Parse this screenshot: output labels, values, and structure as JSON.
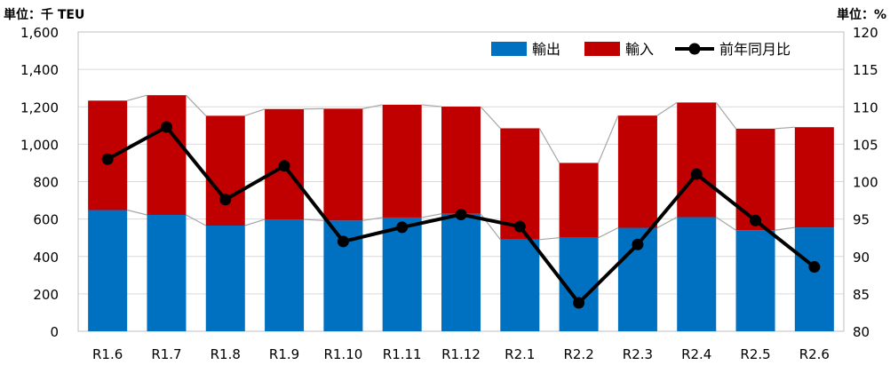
{
  "chart_data": {
    "type": "bar",
    "stacked": true,
    "left_unit_label": "単位：千 TEU",
    "right_unit_label": "単位：%",
    "categories": [
      "R1.6",
      "R1.7",
      "R1.8",
      "R1.9",
      "R1.10",
      "R1.11",
      "R1.12",
      "R2.1",
      "R2.2",
      "R2.3",
      "R2.4",
      "R2.5",
      "R2.6"
    ],
    "y_left": {
      "min": 0,
      "max": 1600,
      "step": 200,
      "tick_labels": [
        "0",
        "200",
        "400",
        "600",
        "800",
        "1,000",
        "1,200",
        "1,400",
        "1,600"
      ]
    },
    "y_right": {
      "min": 80,
      "max": 120,
      "step": 5,
      "tick_labels": [
        "80",
        "85",
        "90",
        "95",
        "100",
        "105",
        "110",
        "115",
        "120"
      ]
    },
    "series": [
      {
        "name": "輸出",
        "type": "bar",
        "axis": "left",
        "color": "#0070C0",
        "values": [
          648,
          622,
          565,
          598,
          592,
          608,
          628,
          490,
          500,
          553,
          610,
          540,
          555
        ]
      },
      {
        "name": "輸入",
        "type": "bar",
        "axis": "left",
        "color": "#C00000",
        "values": [
          585,
          640,
          587,
          590,
          598,
          603,
          573,
          595,
          400,
          600,
          613,
          543,
          536
        ]
      },
      {
        "name": "前年同月比",
        "type": "line",
        "axis": "right",
        "color": "#000000",
        "values": [
          103.0,
          107.3,
          97.6,
          102.1,
          92.0,
          93.9,
          95.6,
          94.0,
          83.8,
          91.6,
          101.0,
          94.8,
          88.6
        ]
      }
    ],
    "legend_position": "top-right",
    "gridlines": "horizontal",
    "series_connectors": true,
    "connector_color": "#A6A6A6"
  }
}
